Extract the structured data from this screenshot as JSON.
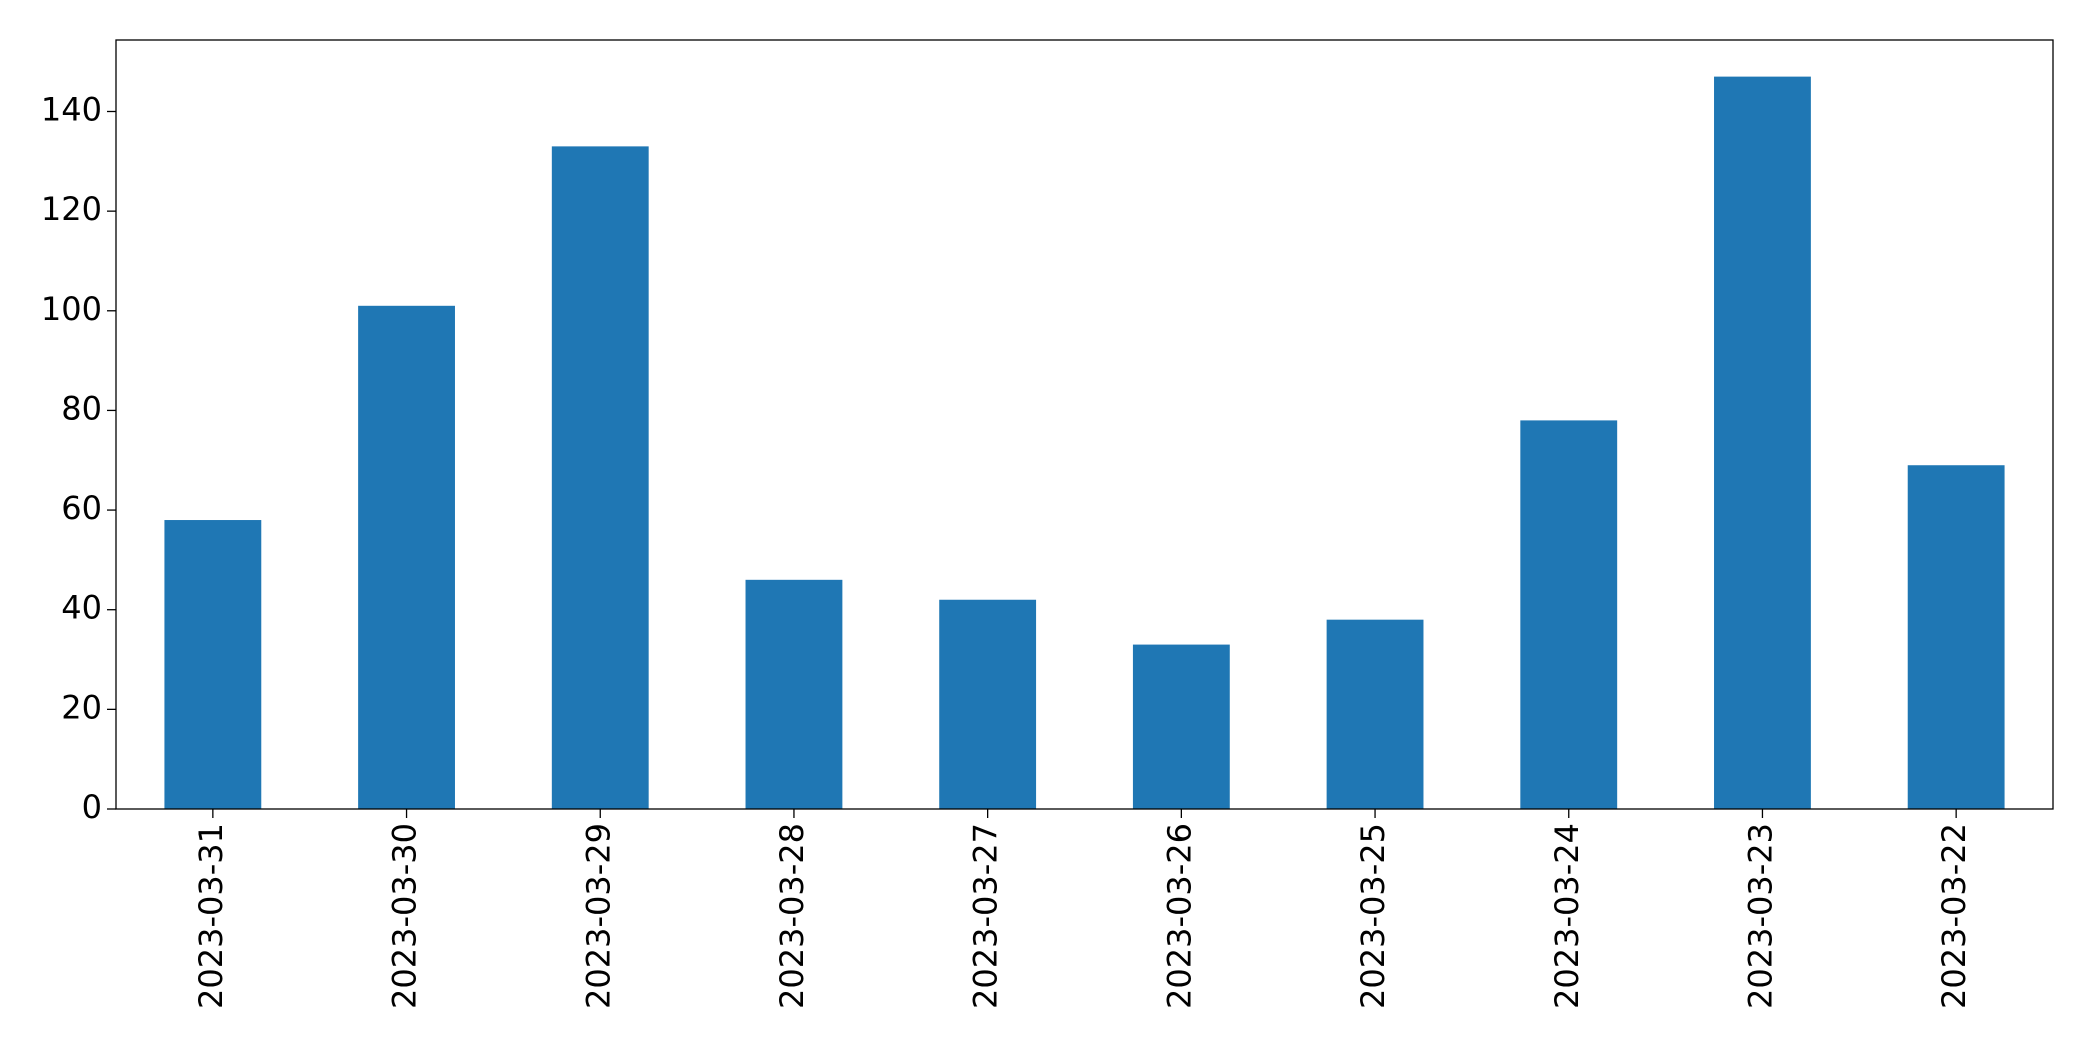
{
  "chart_data": {
    "type": "bar",
    "categories": [
      "2023-03-31",
      "2023-03-30",
      "2023-03-29",
      "2023-03-28",
      "2023-03-27",
      "2023-03-26",
      "2023-03-25",
      "2023-03-24",
      "2023-03-23",
      "2023-03-22"
    ],
    "values": [
      58,
      101,
      133,
      46,
      42,
      33,
      38,
      78,
      147,
      69
    ],
    "color": "#1f77b4",
    "ylim": [
      0,
      154.35
    ],
    "yticks": [
      0,
      20,
      40,
      60,
      80,
      100,
      120,
      140
    ],
    "grid": false
  }
}
